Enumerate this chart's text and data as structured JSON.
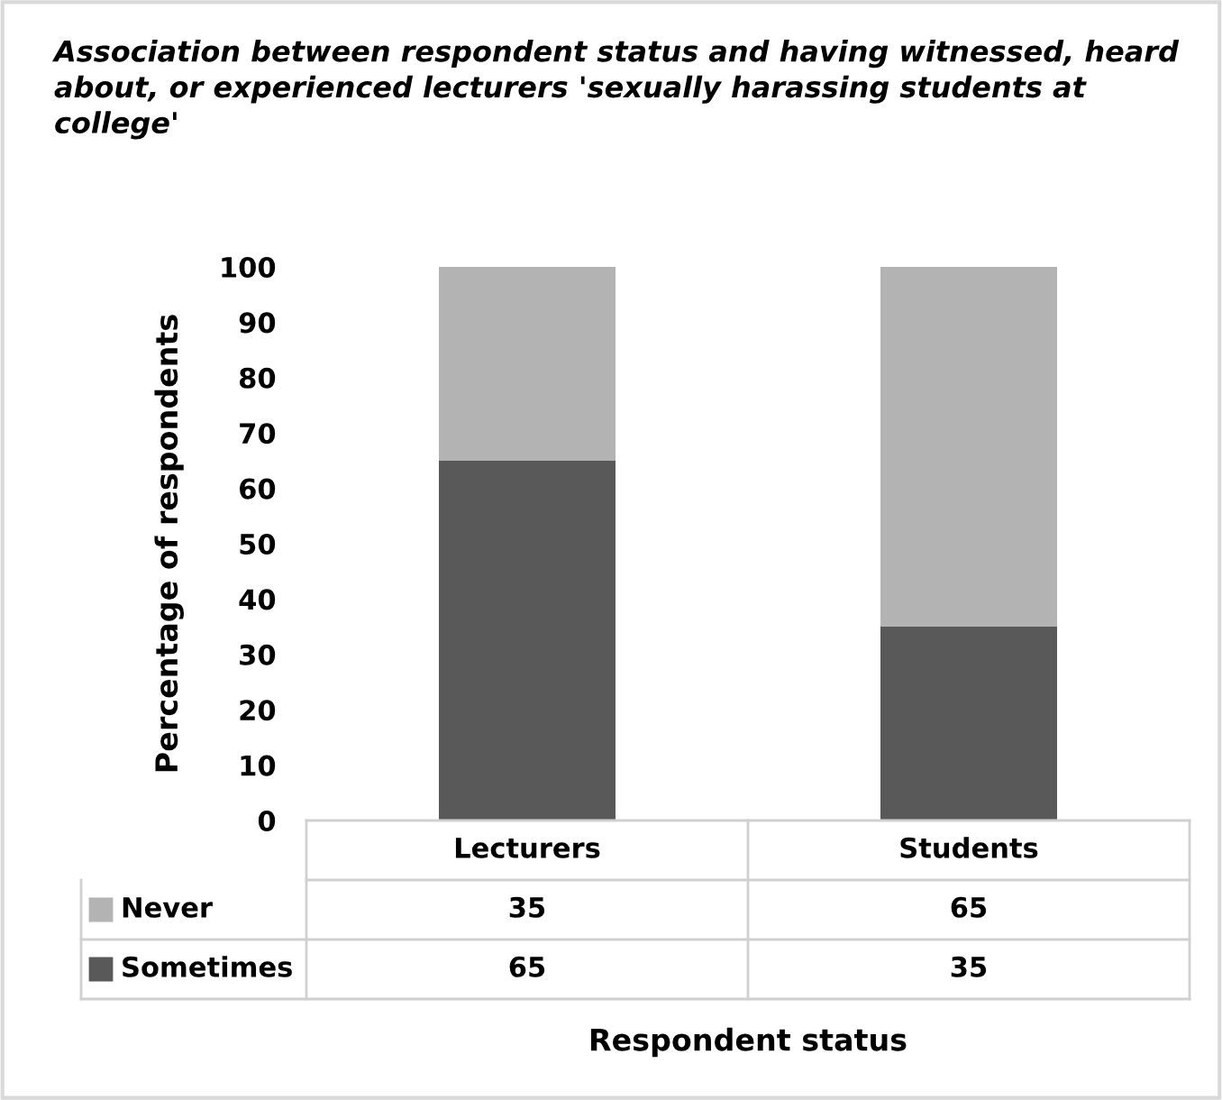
{
  "chart_data": {
    "type": "bar",
    "stacked": true,
    "title": "Association between respondent status and having witnessed, heard about, or experienced lecturers 'sexually harassing students at college'",
    "annotations": [
      "Respondent status"
    ],
    "ylabel": "Percentage of respondents",
    "categories": [
      "Lecturers",
      "Students"
    ],
    "series": [
      {
        "name": "Sometimes",
        "color": "#595959",
        "values": [
          65,
          35
        ]
      },
      {
        "name": "Never",
        "color": "#b3b3b3",
        "values": [
          35,
          65
        ]
      }
    ],
    "ylim": [
      0,
      100
    ],
    "yticks": [
      0,
      10,
      20,
      30,
      40,
      50,
      60,
      70,
      80,
      90,
      100
    ],
    "data_labels": true,
    "legend": "bottom",
    "grid": false
  }
}
